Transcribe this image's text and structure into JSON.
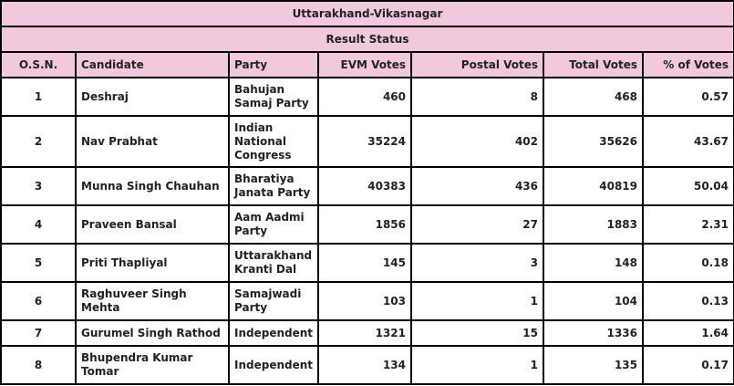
{
  "title": "Uttarakhand-Vikasnagar",
  "subtitle": "Result Status",
  "columns": [
    "O.S.N.",
    "Candidate",
    "Party",
    "EVM Votes",
    "Postal Votes",
    "Total Votes",
    "% of Votes"
  ],
  "rows": [
    {
      "osn": "1",
      "candidate": "Deshraj",
      "party": "Bahujan Samaj Party",
      "evm": "460",
      "postal": "8",
      "total": "468",
      "pct": "0.57"
    },
    {
      "osn": "2",
      "candidate": "Nav Prabhat",
      "party": "Indian National Congress",
      "evm": "35224",
      "postal": "402",
      "total": "35626",
      "pct": "43.67"
    },
    {
      "osn": "3",
      "candidate": "Munna Singh Chauhan",
      "party": "Bharatiya Janata Party",
      "evm": "40383",
      "postal": "436",
      "total": "40819",
      "pct": "50.04"
    },
    {
      "osn": "4",
      "candidate": "Praveen Bansal",
      "party": "Aam Aadmi Party",
      "evm": "1856",
      "postal": "27",
      "total": "1883",
      "pct": "2.31"
    },
    {
      "osn": "5",
      "candidate": "Priti Thapliyal",
      "party": "Uttarakhand Kranti Dal",
      "evm": "145",
      "postal": "3",
      "total": "148",
      "pct": "0.18"
    },
    {
      "osn": "6",
      "candidate": "Raghuveer Singh Mehta",
      "party": "Samajwadi Party",
      "evm": "103",
      "postal": "1",
      "total": "104",
      "pct": "0.13"
    },
    {
      "osn": "7",
      "candidate": "Gurumel Singh Rathod",
      "party": "Independent",
      "evm": "1321",
      "postal": "15",
      "total": "1336",
      "pct": "1.64"
    },
    {
      "osn": "8",
      "candidate": "Bhupendra Kumar Tomar",
      "party": "Independent",
      "evm": "134",
      "postal": "1",
      "total": "135",
      "pct": "0.17"
    }
  ]
}
